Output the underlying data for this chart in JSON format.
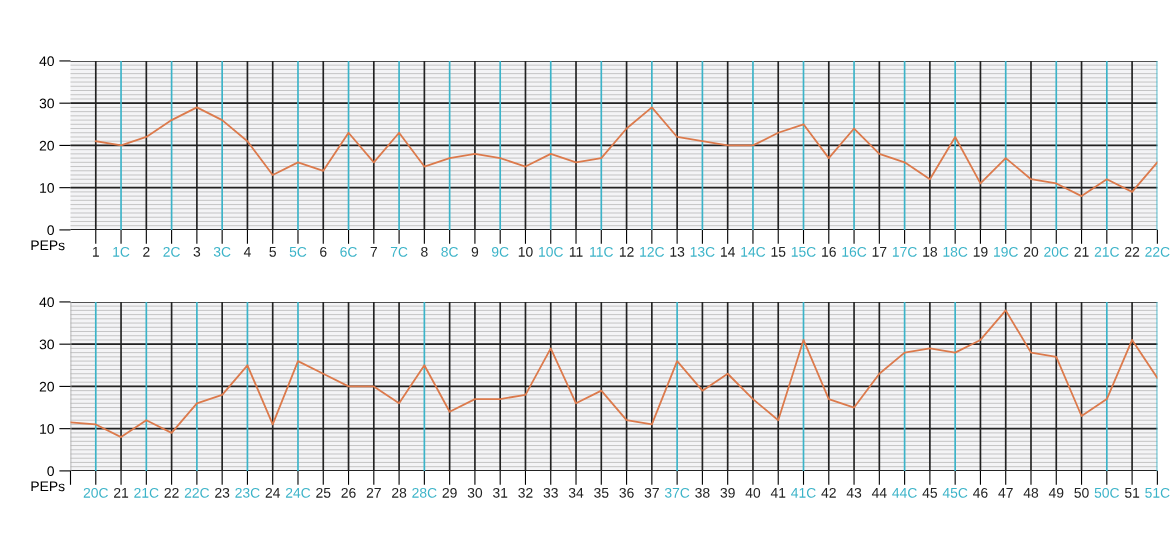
{
  "chart_data": [
    {
      "type": "line",
      "xlabel": "PEPs",
      "grid": true,
      "ylim": [
        0,
        40
      ],
      "yticks": [
        0,
        10,
        20,
        30,
        40
      ],
      "categories": [
        "1",
        "1C",
        "2",
        "2C",
        "3",
        "3C",
        "4",
        "5",
        "5C",
        "6",
        "6C",
        "7",
        "7C",
        "8",
        "8C",
        "9",
        "9C",
        "10",
        "10C",
        "11",
        "11C",
        "12",
        "12C",
        "13",
        "13C",
        "14",
        "14C",
        "15",
        "15C",
        "16",
        "16C",
        "17",
        "17C",
        "18",
        "18C",
        "19",
        "19C",
        "20",
        "20C",
        "21",
        "21C",
        "22",
        "22C"
      ],
      "colors": [
        "#222222",
        "#3bb3c8",
        "#222222",
        "#3bb3c8",
        "#222222",
        "#3bb3c8",
        "#222222",
        "#222222",
        "#3bb3c8",
        "#222222",
        "#3bb3c8",
        "#222222",
        "#3bb3c8",
        "#222222",
        "#3bb3c8",
        "#222222",
        "#3bb3c8",
        "#222222",
        "#3bb3c8",
        "#222222",
        "#3bb3c8",
        "#222222",
        "#3bb3c8",
        "#222222",
        "#3bb3c8",
        "#222222",
        "#3bb3c8",
        "#222222",
        "#3bb3c8",
        "#222222",
        "#3bb3c8",
        "#222222",
        "#3bb3c8",
        "#222222",
        "#3bb3c8",
        "#222222",
        "#3bb3c8",
        "#222222",
        "#3bb3c8",
        "#222222",
        "#3bb3c8",
        "#222222",
        "#3bb3c8"
      ],
      "series": [
        {
          "color": "#dc7a4c",
          "values": [
            21,
            20,
            22,
            26,
            29,
            26,
            21,
            13,
            16,
            14,
            23,
            16,
            23,
            15,
            17,
            18,
            17,
            15,
            18,
            16,
            17,
            24,
            29,
            22,
            21,
            20,
            20,
            23,
            25,
            17,
            24,
            18,
            16,
            12,
            22,
            11,
            17,
            12,
            11,
            8,
            12,
            9,
            16
          ]
        }
      ]
    },
    {
      "type": "line",
      "xlabel": "PEPs",
      "grid": true,
      "ylim": [
        0,
        40
      ],
      "yticks": [
        0,
        10,
        20,
        30,
        40
      ],
      "categories": [
        null,
        "20C",
        "21",
        "21C",
        "22",
        "22C",
        "23",
        "23C",
        "24",
        "24C",
        "25",
        "26",
        "27",
        "28",
        "28C",
        "29",
        "30",
        "31",
        "32",
        "33",
        "34",
        "35",
        "36",
        "37",
        "37C",
        "38",
        "39",
        "40",
        "41",
        "41C",
        "42",
        "43",
        "44",
        "44C",
        "45",
        "45C",
        "46",
        "47",
        "48",
        "49",
        "50",
        "50C",
        "51",
        "51C"
      ],
      "colors": [
        "#aaaaaa",
        "#3bb3c8",
        "#222222",
        "#3bb3c8",
        "#222222",
        "#3bb3c8",
        "#222222",
        "#3bb3c8",
        "#222222",
        "#3bb3c8",
        "#222222",
        "#222222",
        "#222222",
        "#222222",
        "#3bb3c8",
        "#222222",
        "#222222",
        "#222222",
        "#222222",
        "#222222",
        "#222222",
        "#222222",
        "#222222",
        "#222222",
        "#3bb3c8",
        "#222222",
        "#222222",
        "#222222",
        "#222222",
        "#3bb3c8",
        "#222222",
        "#222222",
        "#222222",
        "#3bb3c8",
        "#222222",
        "#3bb3c8",
        "#222222",
        "#222222",
        "#222222",
        "#222222",
        "#222222",
        "#3bb3c8",
        "#222222",
        "#3bb3c8"
      ],
      "series": [
        {
          "color": "#dc7a4c",
          "values": [
            11.5,
            11,
            8,
            12,
            9,
            16,
            18,
            25,
            11,
            26,
            23,
            20,
            20,
            16,
            25,
            14,
            17,
            17,
            18,
            29,
            16,
            19,
            12,
            11,
            26,
            19,
            23,
            17,
            12,
            31,
            17,
            15,
            23,
            28,
            29,
            28,
            31,
            38,
            28,
            27,
            13,
            17,
            31,
            22
          ]
        }
      ]
    }
  ]
}
